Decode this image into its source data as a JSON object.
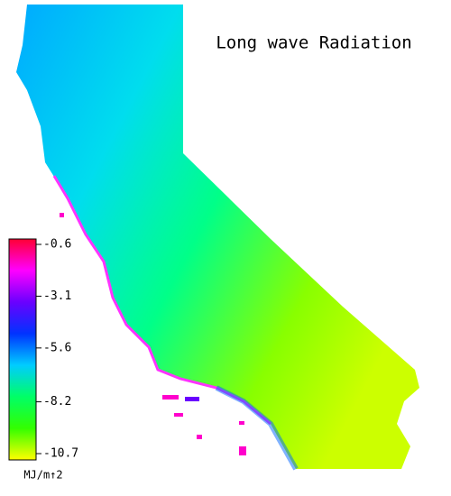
{
  "title": "Long wave Radiation",
  "colorbar": {
    "ticks": [
      -0.6,
      -3.1,
      -5.6,
      -8.2,
      -10.7
    ],
    "range": [
      -0.6,
      -10.7
    ],
    "colors": [
      "#ff0033",
      "#ff00ff",
      "#6a00ff",
      "#0033ff",
      "#00ccff",
      "#00ff66",
      "#33ff00",
      "#ffff00"
    ],
    "unit_label": "MJ/m↑2"
  }
}
